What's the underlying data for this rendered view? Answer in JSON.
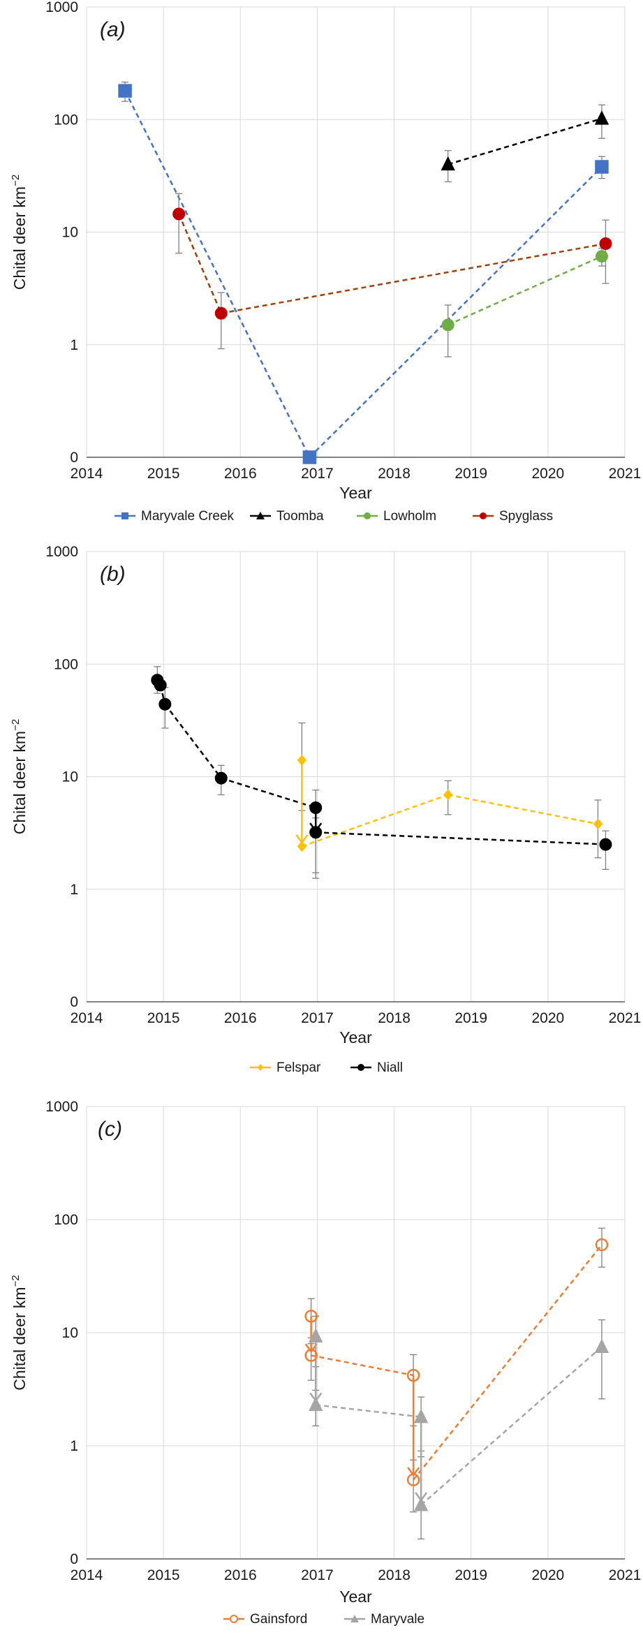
{
  "figure": {
    "panel_count": 3
  },
  "chart_data": [
    {
      "type": "scatter",
      "panel_label": "(a)",
      "xlabel": "Year",
      "ylabel": "Chital deer km",
      "ylabel_superscript": "−2",
      "scale_y": "log",
      "xlim": [
        2014,
        2021
      ],
      "ylim": [
        0.1,
        1000
      ],
      "x_ticks": [
        2014,
        2015,
        2016,
        2017,
        2018,
        2019,
        2020,
        2021
      ],
      "y_ticks": [
        0.1,
        1,
        10,
        100,
        1000
      ],
      "y_tick_labels": [
        "0",
        "1",
        "10",
        "100",
        "1000"
      ],
      "grid": true,
      "legend_position": "bottom",
      "series": [
        {
          "name": "Maryvale Creek",
          "color": "#4472C4",
          "marker": "square",
          "filled": true,
          "line": "dashed",
          "points": [
            {
              "x": 2014.5,
              "y": 180,
              "err_low": 145,
              "err_high": 215
            },
            {
              "x": 2016.9,
              "y": 0.1
            },
            {
              "x": 2020.7,
              "y": 38,
              "err_low": 30,
              "err_high": 47
            }
          ]
        },
        {
          "name": "Toomba",
          "color": "#000000",
          "marker": "triangle",
          "filled": true,
          "line": "dashed",
          "points": [
            {
              "x": 2018.7,
              "y": 40,
              "err_low": 28,
              "err_high": 53
            },
            {
              "x": 2020.7,
              "y": 102,
              "err_low": 68,
              "err_high": 135
            }
          ]
        },
        {
          "name": "Lowholm",
          "color": "#70AD47",
          "marker": "circle",
          "filled": true,
          "line": "dashed",
          "points": [
            {
              "x": 2018.7,
              "y": 1.5,
              "err_low": 0.78,
              "err_high": 2.25
            },
            {
              "x": 2020.7,
              "y": 6.1,
              "err_low": 5.0,
              "err_high": 7.2
            }
          ]
        },
        {
          "name": "Spyglass",
          "color": "#C00000",
          "line_color": "#A0410B",
          "marker": "circle",
          "filled": true,
          "line": "dashed",
          "points": [
            {
              "x": 2015.2,
              "y": 14.5,
              "err_low": 6.5,
              "err_high": 22
            },
            {
              "x": 2015.75,
              "y": 1.9,
              "err_low": 0.92,
              "err_high": 2.9
            },
            {
              "x": 2020.75,
              "y": 7.9,
              "err_low": 3.5,
              "err_high": 12.8
            }
          ]
        }
      ],
      "arrows": []
    },
    {
      "type": "scatter",
      "panel_label": "(b)",
      "xlabel": "Year",
      "ylabel": "Chital deer km",
      "ylabel_superscript": "−2",
      "scale_y": "log",
      "xlim": [
        2014,
        2021
      ],
      "ylim": [
        0.1,
        1000
      ],
      "x_ticks": [
        2014,
        2015,
        2016,
        2017,
        2018,
        2019,
        2020,
        2021
      ],
      "y_ticks": [
        0.1,
        1,
        10,
        100,
        1000
      ],
      "y_tick_labels": [
        "0",
        "1",
        "10",
        "100",
        "1000"
      ],
      "grid": true,
      "legend_position": "bottom",
      "series": [
        {
          "name": "Felspar",
          "color": "#FFC000",
          "marker": "diamond",
          "filled": true,
          "line": "dashed",
          "points": [
            {
              "x": 2016.8,
              "y": 14,
              "err_low": 5,
              "err_high": 30
            },
            {
              "x": 2016.8,
              "y": 2.4
            },
            {
              "x": 2018.7,
              "y": 6.9,
              "err_low": 4.6,
              "err_high": 9.2
            },
            {
              "x": 2020.65,
              "y": 3.8,
              "err_low": 1.9,
              "err_high": 6.2
            }
          ]
        },
        {
          "name": "Niall",
          "color": "#000000",
          "marker": "circle",
          "filled": true,
          "line": "dashed",
          "points": [
            {
              "x": 2014.92,
              "y": 72,
              "err_low": 55,
              "err_high": 95
            },
            {
              "x": 2014.96,
              "y": 65
            },
            {
              "x": 2015.02,
              "y": 44,
              "err_low": 27,
              "err_high": 62
            },
            {
              "x": 2015.75,
              "y": 9.7,
              "err_low": 6.9,
              "err_high": 12.6
            },
            {
              "x": 2016.98,
              "y": 5.3,
              "err_low": 1.4,
              "err_high": 7.6
            },
            {
              "x": 2016.98,
              "y": 3.2,
              "err_low": 1.25,
              "err_high": 4.3
            },
            {
              "x": 2020.75,
              "y": 2.5,
              "err_low": 1.5,
              "err_high": 3.3
            }
          ]
        }
      ],
      "arrows": [
        {
          "color": "#FFC000",
          "x": 2016.8,
          "from": 14,
          "to": 2.6
        },
        {
          "color": "#000000",
          "x": 2016.98,
          "from": 5.3,
          "to": 3.3
        }
      ]
    },
    {
      "type": "scatter",
      "panel_label": "(c)",
      "xlabel": "Year",
      "ylabel": "Chital deer km",
      "ylabel_superscript": "−2",
      "scale_y": "log",
      "xlim": [
        2014,
        2021
      ],
      "ylim": [
        0.1,
        1000
      ],
      "x_ticks": [
        2014,
        2015,
        2016,
        2017,
        2018,
        2019,
        2020,
        2021
      ],
      "y_ticks": [
        0.1,
        1,
        10,
        100,
        1000
      ],
      "y_tick_labels": [
        "0",
        "1",
        "10",
        "100",
        "1000"
      ],
      "grid": true,
      "legend_position": "bottom",
      "series": [
        {
          "name": "Gainsford",
          "color": "#ED7D31",
          "marker": "circle",
          "filled": false,
          "line": "dashed",
          "points": [
            {
              "x": 2016.92,
              "y": 14,
              "err_low": 8,
              "err_high": 20
            },
            {
              "x": 2016.92,
              "y": 6.3,
              "err_low": 3.8,
              "err_high": 9
            },
            {
              "x": 2018.25,
              "y": 4.2,
              "err_low": 1.5,
              "err_high": 6.4
            },
            {
              "x": 2018.25,
              "y": 0.5,
              "err_low": 0.26,
              "err_high": 0.75
            },
            {
              "x": 2020.7,
              "y": 60,
              "err_low": 38,
              "err_high": 84
            }
          ]
        },
        {
          "name": "Maryvale",
          "color": "#A5A5A5",
          "marker": "triangle",
          "filled": true,
          "line": "dashed",
          "points": [
            {
              "x": 2016.98,
              "y": 9.3,
              "err_low": 5,
              "err_high": 14
            },
            {
              "x": 2016.98,
              "y": 2.3,
              "err_low": 1.5,
              "err_high": 3.1
            },
            {
              "x": 2018.35,
              "y": 1.8,
              "err_low": 0.8,
              "err_high": 2.7
            },
            {
              "x": 2018.35,
              "y": 0.3,
              "err_low": 0.15,
              "err_high": 0.9
            },
            {
              "x": 2020.7,
              "y": 7.5,
              "err_low": 2.6,
              "err_high": 13
            }
          ]
        }
      ],
      "arrows": [
        {
          "color": "#ED7D31",
          "x": 2016.92,
          "from": 14,
          "to": 6.8
        },
        {
          "color": "#ED7D31",
          "x": 2018.25,
          "from": 4.2,
          "to": 0.55
        },
        {
          "color": "#A5A5A5",
          "x": 2016.98,
          "from": 9.3,
          "to": 2.5
        },
        {
          "color": "#A5A5A5",
          "x": 2018.35,
          "from": 1.8,
          "to": 0.33
        }
      ]
    }
  ]
}
